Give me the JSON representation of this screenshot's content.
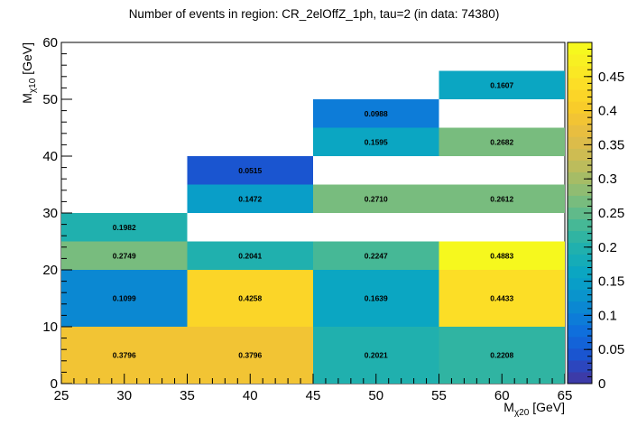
{
  "chart_data": {
    "type": "heatmap",
    "title": "Number of events in region: CR_2elOffZ_1ph, tau=2 (in data: 74380)",
    "xlabel": {
      "main": "M",
      "sub": "χ20",
      "unit": " [GeV]"
    },
    "ylabel": {
      "main": "M",
      "sub": "χ10",
      "unit": " [GeV]"
    },
    "xlim": [
      25,
      65
    ],
    "ylim": [
      0,
      60
    ],
    "x_ticks": [
      25,
      30,
      35,
      40,
      45,
      50,
      55,
      60,
      65
    ],
    "y_ticks": [
      0,
      10,
      20,
      30,
      40,
      50,
      60
    ],
    "z_range": [
      0,
      0.5
    ],
    "z_ticks": [
      0,
      0.05,
      0.1,
      0.15,
      0.2,
      0.25,
      0.3,
      0.35,
      0.4,
      0.45
    ],
    "z_tick_labels": [
      "0",
      "0.05",
      "0.1",
      "0.15",
      "0.2",
      "0.25",
      "0.3",
      "0.35",
      "0.4",
      "0.45"
    ],
    "cells": [
      {
        "x0": 25,
        "x1": 35,
        "y0": 0,
        "y1": 10,
        "value": 0.3796,
        "label": "0.3796"
      },
      {
        "x0": 35,
        "x1": 45,
        "y0": 0,
        "y1": 10,
        "value": 0.3796,
        "label": "0.3796"
      },
      {
        "x0": 45,
        "x1": 55,
        "y0": 0,
        "y1": 10,
        "value": 0.2021,
        "label": "0.2021"
      },
      {
        "x0": 55,
        "x1": 65,
        "y0": 0,
        "y1": 10,
        "value": 0.2208,
        "label": "0.2208"
      },
      {
        "x0": 25,
        "x1": 35,
        "y0": 10,
        "y1": 20,
        "value": 0.1099,
        "label": "0.1099"
      },
      {
        "x0": 35,
        "x1": 45,
        "y0": 10,
        "y1": 20,
        "value": 0.4258,
        "label": "0.4258"
      },
      {
        "x0": 45,
        "x1": 55,
        "y0": 10,
        "y1": 20,
        "value": 0.1639,
        "label": "0.1639"
      },
      {
        "x0": 55,
        "x1": 65,
        "y0": 10,
        "y1": 20,
        "value": 0.4433,
        "label": "0.4433"
      },
      {
        "x0": 25,
        "x1": 35,
        "y0": 20,
        "y1": 25,
        "value": 0.2749,
        "label": "0.2749"
      },
      {
        "x0": 35,
        "x1": 45,
        "y0": 20,
        "y1": 25,
        "value": 0.2041,
        "label": "0.2041"
      },
      {
        "x0": 45,
        "x1": 55,
        "y0": 20,
        "y1": 25,
        "value": 0.2247,
        "label": "0.2247"
      },
      {
        "x0": 55,
        "x1": 65,
        "y0": 20,
        "y1": 25,
        "value": 0.4883,
        "label": "0.4883"
      },
      {
        "x0": 25,
        "x1": 35,
        "y0": 25,
        "y1": 30,
        "value": 0.1982,
        "label": "0.1982"
      },
      {
        "x0": 35,
        "x1": 45,
        "y0": 30,
        "y1": 35,
        "value": 0.1472,
        "label": "0.1472"
      },
      {
        "x0": 45,
        "x1": 55,
        "y0": 30,
        "y1": 35,
        "value": 0.271,
        "label": "0.2710"
      },
      {
        "x0": 55,
        "x1": 65,
        "y0": 30,
        "y1": 35,
        "value": 0.2612,
        "label": "0.2612"
      },
      {
        "x0": 35,
        "x1": 45,
        "y0": 35,
        "y1": 40,
        "value": 0.0515,
        "label": "0.0515"
      },
      {
        "x0": 45,
        "x1": 55,
        "y0": 40,
        "y1": 45,
        "value": 0.1595,
        "label": "0.1595"
      },
      {
        "x0": 55,
        "x1": 65,
        "y0": 40,
        "y1": 45,
        "value": 0.2682,
        "label": "0.2682"
      },
      {
        "x0": 45,
        "x1": 55,
        "y0": 45,
        "y1": 50,
        "value": 0.0988,
        "label": "0.0988"
      },
      {
        "x0": 55,
        "x1": 65,
        "y0": 50,
        "y1": 55,
        "value": 0.1607,
        "label": "0.1607"
      }
    ],
    "colormap": [
      "#3c3ba8",
      "#2c46be",
      "#1a55d0",
      "#1363d8",
      "#0f6fdc",
      "#0d7cd8",
      "#0b88d2",
      "#0a94cc",
      "#099ec8",
      "#0ba6c2",
      "#15acb8",
      "#20b0ae",
      "#30b4a2",
      "#46b896",
      "#60ba8a",
      "#78bc7e",
      "#90bc72",
      "#a6bc66",
      "#bcbc5c",
      "#cebc52",
      "#dcbc4a",
      "#e8be40",
      "#f2c434",
      "#f8cc2a",
      "#fbd528",
      "#fcde26",
      "#fae824",
      "#f8f022",
      "#f6f81e"
    ]
  }
}
